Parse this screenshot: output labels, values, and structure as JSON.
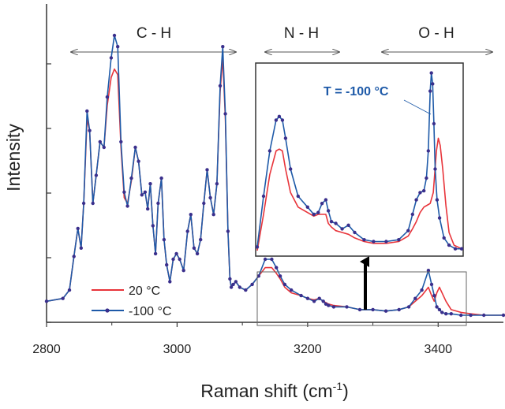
{
  "chart_data": [
    {
      "type": "line",
      "panel": "main",
      "xlabel": "Raman shift (cm",
      "xlabel_sup": "-1",
      "xlabel_close": ")",
      "ylabel": "Intensity",
      "xlim": [
        2800,
        3500
      ],
      "ylim": [
        0,
        1
      ],
      "x_ticks": [
        2800,
        3000,
        3200,
        3400
      ],
      "x_tick_labels": [
        "2800",
        "3000",
        "3200",
        "3400"
      ],
      "y_tick_labels_shown": false,
      "grid": false,
      "legend_placement": "bottom-left",
      "regions": [
        {
          "label": "C - H",
          "from": 2815,
          "to": 3085
        },
        {
          "label": "N - H",
          "from": 3117,
          "to": 3228
        },
        {
          "label": "O - H",
          "from": 3312,
          "to": 3500
        }
      ],
      "series": [
        {
          "name": "20 °C",
          "color": "#e8343a",
          "marker": "none",
          "x": [
            2800,
            2825,
            2835,
            2842,
            2848,
            2853,
            2857,
            2862,
            2866,
            2871,
            2876,
            2882,
            2888,
            2893,
            2899,
            2904,
            2909,
            2914,
            2919,
            2924,
            2930,
            2936,
            2941,
            2946,
            2951,
            2955,
            2959,
            2963,
            2967,
            2971,
            2976,
            2980,
            2984,
            2989,
            2994,
            2999,
            3004,
            3010,
            3016,
            3021,
            3026,
            3031,
            3036,
            3041,
            3046,
            3051,
            3056,
            3061,
            3066,
            3070,
            3074,
            3078,
            3081,
            3083,
            3086,
            3090,
            3096,
            3105,
            3115,
            3125,
            3135,
            3145,
            3152,
            3158,
            3165,
            3175,
            3190,
            3200,
            3210,
            3218,
            3224,
            3228,
            3232,
            3240,
            3260,
            3280,
            3300,
            3320,
            3340,
            3355,
            3365,
            3375,
            3385,
            3390,
            3394,
            3398,
            3402,
            3406,
            3412,
            3420,
            3435,
            3450,
            3470,
            3500
          ],
          "y": [
            0.05,
            0.06,
            0.09,
            0.21,
            0.31,
            0.24,
            0.4,
            0.7,
            0.66,
            0.4,
            0.5,
            0.62,
            0.6,
            0.75,
            0.85,
            0.88,
            0.86,
            0.6,
            0.42,
            0.4,
            0.48,
            0.6,
            0.55,
            0.43,
            0.44,
            0.38,
            0.47,
            0.32,
            0.22,
            0.4,
            0.49,
            0.27,
            0.18,
            0.12,
            0.2,
            0.22,
            0.2,
            0.16,
            0.3,
            0.36,
            0.24,
            0.22,
            0.27,
            0.4,
            0.52,
            0.42,
            0.36,
            0.47,
            0.8,
            0.92,
            0.7,
            0.3,
            0.13,
            0.1,
            0.11,
            0.12,
            0.1,
            0.09,
            0.11,
            0.14,
            0.17,
            0.17,
            0.15,
            0.13,
            0.1,
            0.08,
            0.07,
            0.06,
            0.055,
            0.06,
            0.05,
            0.045,
            0.04,
            0.035,
            0.03,
            0.02,
            0.02,
            0.015,
            0.02,
            0.03,
            0.05,
            0.07,
            0.1,
            0.07,
            0.05,
            0.08,
            0.1,
            0.08,
            0.05,
            0.02,
            0.01,
            0.005,
            0.0,
            0.0
          ]
        },
        {
          "name": "-100 °C",
          "color": "#1e5aa8",
          "marker": "dot",
          "marker_color": "#3a2f8c",
          "x": [
            2800,
            2825,
            2835,
            2842,
            2848,
            2853,
            2857,
            2862,
            2866,
            2871,
            2876,
            2882,
            2888,
            2893,
            2899,
            2904,
            2909,
            2914,
            2919,
            2924,
            2930,
            2936,
            2941,
            2946,
            2951,
            2955,
            2959,
            2963,
            2967,
            2971,
            2976,
            2980,
            2984,
            2989,
            2994,
            2999,
            3004,
            3010,
            3016,
            3021,
            3026,
            3031,
            3036,
            3041,
            3046,
            3051,
            3056,
            3061,
            3066,
            3070,
            3074,
            3078,
            3081,
            3083,
            3086,
            3090,
            3096,
            3105,
            3115,
            3125,
            3135,
            3145,
            3152,
            3158,
            3165,
            3175,
            3190,
            3200,
            3210,
            3218,
            3224,
            3228,
            3232,
            3240,
            3260,
            3280,
            3300,
            3320,
            3340,
            3355,
            3365,
            3375,
            3385,
            3390,
            3394,
            3398,
            3402,
            3406,
            3412,
            3420,
            3435,
            3450,
            3470,
            3500
          ],
          "y": [
            0.05,
            0.06,
            0.09,
            0.21,
            0.31,
            0.24,
            0.4,
            0.73,
            0.66,
            0.4,
            0.5,
            0.62,
            0.6,
            0.78,
            0.92,
            1.0,
            0.96,
            0.62,
            0.44,
            0.39,
            0.49,
            0.6,
            0.55,
            0.43,
            0.44,
            0.38,
            0.47,
            0.32,
            0.22,
            0.4,
            0.49,
            0.27,
            0.18,
            0.12,
            0.2,
            0.22,
            0.2,
            0.16,
            0.3,
            0.36,
            0.24,
            0.22,
            0.27,
            0.4,
            0.52,
            0.42,
            0.36,
            0.47,
            0.82,
            0.96,
            0.72,
            0.3,
            0.13,
            0.1,
            0.11,
            0.12,
            0.1,
            0.09,
            0.11,
            0.14,
            0.2,
            0.2,
            0.17,
            0.14,
            0.11,
            0.09,
            0.07,
            0.06,
            0.05,
            0.06,
            0.05,
            0.04,
            0.035,
            0.03,
            0.03,
            0.02,
            0.02,
            0.015,
            0.02,
            0.03,
            0.06,
            0.09,
            0.16,
            0.11,
            0.07,
            0.03,
            0.02,
            0.01,
            0.005,
            0.005,
            0.0,
            0.0,
            0.0,
            0.0
          ]
        }
      ]
    },
    {
      "type": "line",
      "panel": "inset",
      "annotation": "T = -100 °C",
      "xlim": [
        3115,
        3440
      ],
      "ylim": [
        0,
        1
      ],
      "series": [
        {
          "name": "20 °C",
          "color": "#e8343a",
          "marker": "none",
          "x": [
            3115,
            3125,
            3135,
            3145,
            3150,
            3155,
            3160,
            3168,
            3180,
            3195,
            3205,
            3212,
            3218,
            3224,
            3228,
            3233,
            3240,
            3250,
            3260,
            3270,
            3285,
            3300,
            3320,
            3340,
            3355,
            3362,
            3368,
            3374,
            3380,
            3385,
            3390,
            3395,
            3400,
            3403,
            3406,
            3410,
            3415,
            3420,
            3428,
            3440
          ],
          "y": [
            0.0,
            0.2,
            0.42,
            0.55,
            0.56,
            0.55,
            0.45,
            0.32,
            0.24,
            0.21,
            0.19,
            0.2,
            0.2,
            0.2,
            0.15,
            0.13,
            0.11,
            0.1,
            0.09,
            0.07,
            0.05,
            0.04,
            0.04,
            0.05,
            0.08,
            0.12,
            0.16,
            0.21,
            0.24,
            0.25,
            0.26,
            0.32,
            0.55,
            0.62,
            0.58,
            0.45,
            0.25,
            0.1,
            0.03,
            0.01
          ]
        },
        {
          "name": "-100 °C",
          "color": "#1e5aa8",
          "marker": "dot",
          "marker_color": "#3a2f8c",
          "x": [
            3115,
            3125,
            3135,
            3145,
            3150,
            3155,
            3160,
            3168,
            3180,
            3195,
            3205,
            3212,
            3218,
            3224,
            3228,
            3233,
            3240,
            3250,
            3260,
            3270,
            3285,
            3300,
            3320,
            3340,
            3355,
            3362,
            3368,
            3374,
            3380,
            3384,
            3387,
            3390,
            3392,
            3394,
            3396,
            3398,
            3401,
            3405,
            3412,
            3420,
            3430,
            3440
          ],
          "y": [
            0.02,
            0.3,
            0.55,
            0.72,
            0.74,
            0.72,
            0.62,
            0.45,
            0.3,
            0.24,
            0.2,
            0.21,
            0.26,
            0.28,
            0.22,
            0.16,
            0.15,
            0.12,
            0.14,
            0.1,
            0.06,
            0.05,
            0.05,
            0.06,
            0.11,
            0.2,
            0.28,
            0.32,
            0.33,
            0.4,
            0.55,
            0.88,
            0.98,
            0.92,
            0.7,
            0.45,
            0.28,
            0.18,
            0.07,
            0.03,
            0.01,
            0.01
          ]
        }
      ]
    }
  ]
}
